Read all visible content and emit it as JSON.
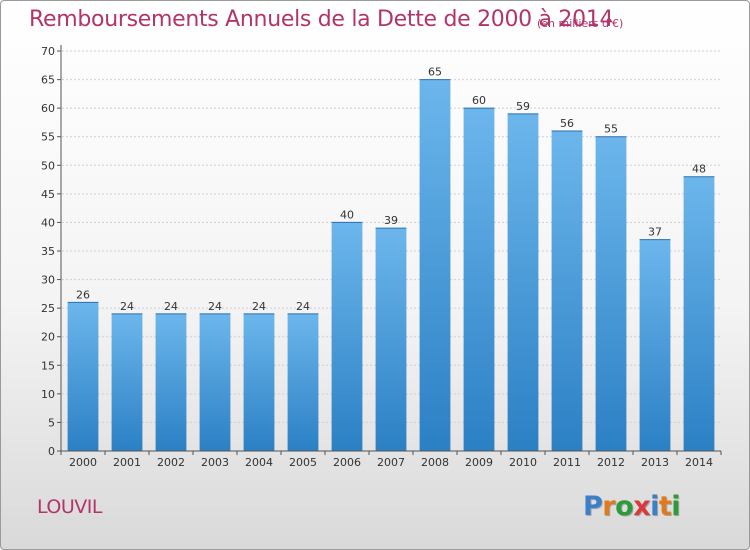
{
  "header": {
    "title": "Remboursements Annuels de la Dette de 2000 à 2014",
    "unit": "(en milliers d'€)"
  },
  "commune": "LOUVIL",
  "logo": {
    "text": "Proxiti",
    "letter_colors": [
      "#3a7fc8",
      "#e07a1f",
      "#2e9a3a",
      "#d93a3a",
      "#3a7fc8",
      "#e07a1f",
      "#2e9a3a"
    ]
  },
  "colors": {
    "bar_top": "#6cb6ec",
    "bar_bottom": "#2b80c4",
    "title": "#b2356a",
    "axis": "#555555",
    "grid": "#d0d0d0"
  },
  "chart_data": {
    "type": "bar",
    "title": "Remboursements Annuels de la Dette de 2000 à 2014",
    "subtitle": "(en milliers d'€)",
    "categories": [
      "2000",
      "2001",
      "2002",
      "2003",
      "2004",
      "2005",
      "2006",
      "2007",
      "2008",
      "2009",
      "2010",
      "2011",
      "2012",
      "2013",
      "2014"
    ],
    "values": [
      26,
      24,
      24,
      24,
      24,
      24,
      40,
      39,
      65,
      60,
      59,
      56,
      55,
      37,
      48
    ],
    "ylim": [
      0,
      70
    ],
    "yticks": [
      0,
      5,
      10,
      15,
      20,
      25,
      30,
      35,
      40,
      45,
      50,
      55,
      60,
      65,
      70
    ],
    "grid": true,
    "data_labels": true
  }
}
